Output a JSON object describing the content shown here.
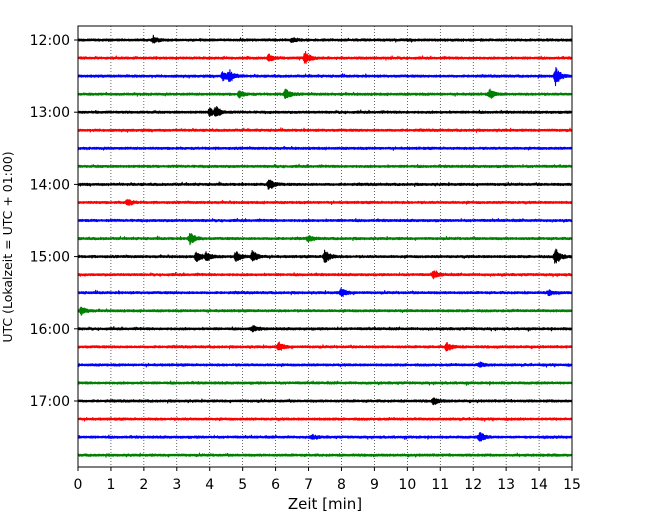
{
  "chart_data": {
    "type": "line",
    "subtype": "helicorder-seismogram",
    "title": "",
    "xlabel": "Zeit  [min]",
    "ylabel": "UTC (Lokalzeit = UTC + 01:00)",
    "xlim": [
      0,
      15
    ],
    "x_ticks": [
      0,
      1,
      2,
      3,
      4,
      5,
      6,
      7,
      8,
      9,
      10,
      11,
      12,
      13,
      14,
      15
    ],
    "x_tick_labels": [
      "0",
      "1",
      "2",
      "3",
      "4",
      "5",
      "6",
      "7",
      "8",
      "9",
      "10",
      "11",
      "12",
      "13",
      "14",
      "15"
    ],
    "y_tick_labels": [
      "12:00",
      "13:00",
      "14:00",
      "15:00",
      "16:00",
      "17:00"
    ],
    "y_tick_rows": [
      0,
      4,
      8,
      12,
      16,
      20
    ],
    "grid": {
      "x_vertical_dotted": true
    },
    "row_minutes": 15,
    "color_cycle": [
      "#000000",
      "#ff0000",
      "#0000ff",
      "#008000"
    ],
    "traces": [
      {
        "start": "12:00",
        "color": "#000000",
        "events": [
          {
            "t": 2.3,
            "amp": 0.25
          },
          {
            "t": 6.5,
            "amp": 0.2
          }
        ]
      },
      {
        "start": "12:15",
        "color": "#ff0000",
        "events": [
          {
            "t": 5.8,
            "amp": 0.3
          },
          {
            "t": 6.9,
            "amp": 0.55
          }
        ]
      },
      {
        "start": "12:30",
        "color": "#0000ff",
        "events": [
          {
            "t": 4.4,
            "amp": 0.4
          },
          {
            "t": 4.6,
            "amp": 0.5
          },
          {
            "t": 14.5,
            "amp": 0.8
          }
        ]
      },
      {
        "start": "12:45",
        "color": "#008000",
        "events": [
          {
            "t": 4.9,
            "amp": 0.3
          },
          {
            "t": 6.3,
            "amp": 0.5
          },
          {
            "t": 12.5,
            "amp": 0.4
          }
        ]
      },
      {
        "start": "13:00",
        "color": "#000000",
        "events": [
          {
            "t": 4.0,
            "amp": 0.35
          },
          {
            "t": 4.2,
            "amp": 0.45
          }
        ]
      },
      {
        "start": "13:15",
        "color": "#ff0000",
        "events": []
      },
      {
        "start": "13:30",
        "color": "#0000ff",
        "events": []
      },
      {
        "start": "13:45",
        "color": "#008000",
        "events": []
      },
      {
        "start": "14:00",
        "color": "#000000",
        "events": [
          {
            "t": 5.8,
            "amp": 0.55
          }
        ]
      },
      {
        "start": "14:15",
        "color": "#ff0000",
        "events": [
          {
            "t": 1.5,
            "amp": 0.3
          }
        ]
      },
      {
        "start": "14:30",
        "color": "#0000ff",
        "events": []
      },
      {
        "start": "14:45",
        "color": "#008000",
        "events": [
          {
            "t": 3.4,
            "amp": 0.55
          },
          {
            "t": 7.0,
            "amp": 0.25
          }
        ]
      },
      {
        "start": "15:00",
        "color": "#000000",
        "events": [
          {
            "t": 3.6,
            "amp": 0.45
          },
          {
            "t": 3.9,
            "amp": 0.4
          },
          {
            "t": 4.8,
            "amp": 0.45
          },
          {
            "t": 5.3,
            "amp": 0.55
          },
          {
            "t": 7.5,
            "amp": 0.65
          },
          {
            "t": 14.5,
            "amp": 0.8
          }
        ]
      },
      {
        "start": "15:15",
        "color": "#ff0000",
        "events": [
          {
            "t": 10.8,
            "amp": 0.35
          }
        ]
      },
      {
        "start": "15:30",
        "color": "#0000ff",
        "events": [
          {
            "t": 8.0,
            "amp": 0.4
          },
          {
            "t": 14.3,
            "amp": 0.2
          }
        ]
      },
      {
        "start": "15:45",
        "color": "#008000",
        "events": [
          {
            "t": 0.1,
            "amp": 0.35
          }
        ]
      },
      {
        "start": "16:00",
        "color": "#000000",
        "events": [
          {
            "t": 5.3,
            "amp": 0.25
          }
        ]
      },
      {
        "start": "16:15",
        "color": "#ff0000",
        "events": [
          {
            "t": 6.1,
            "amp": 0.4
          },
          {
            "t": 11.2,
            "amp": 0.4
          }
        ]
      },
      {
        "start": "16:30",
        "color": "#0000ff",
        "events": [
          {
            "t": 12.2,
            "amp": 0.2
          }
        ]
      },
      {
        "start": "16:45",
        "color": "#008000",
        "events": []
      },
      {
        "start": "17:00",
        "color": "#000000",
        "events": [
          {
            "t": 10.8,
            "amp": 0.3
          }
        ]
      },
      {
        "start": "17:15",
        "color": "#ff0000",
        "events": []
      },
      {
        "start": "17:30",
        "color": "#0000ff",
        "events": [
          {
            "t": 12.2,
            "amp": 0.45
          },
          {
            "t": 7.1,
            "amp": 0.2
          }
        ]
      },
      {
        "start": "17:45",
        "color": "#008000",
        "events": []
      }
    ]
  }
}
